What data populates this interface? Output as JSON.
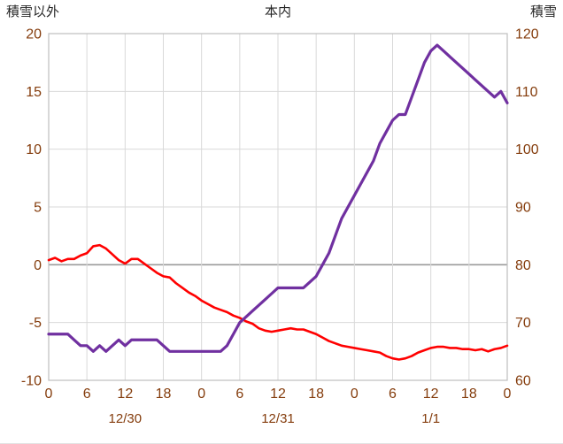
{
  "header": {
    "left_axis_title": "積雪以外",
    "chart_title": "本内",
    "right_axis_title": "積雪"
  },
  "chart_data": {
    "type": "line",
    "title": "本内",
    "left_axis": {
      "label": "積雪以外",
      "min": -10,
      "max": 20,
      "ticks": [
        20,
        15,
        10,
        5,
        0,
        -5,
        -10
      ]
    },
    "right_axis": {
      "label": "積雪",
      "min": 60,
      "max": 120,
      "ticks": [
        120,
        110,
        100,
        90,
        80,
        70,
        60
      ]
    },
    "x_axis": {
      "unit": "hour",
      "start_hour": 0,
      "end_hour": 72,
      "tick_hours": [
        0,
        6,
        12,
        18,
        24,
        30,
        36,
        42,
        48,
        54,
        60,
        66,
        72
      ],
      "tick_labels": [
        "0",
        "6",
        "12",
        "18",
        "0",
        "6",
        "12",
        "18",
        "0",
        "6",
        "12",
        "18",
        "0"
      ],
      "day_labels": [
        {
          "text": "12/30",
          "hour": 12
        },
        {
          "text": "12/31",
          "hour": 36
        },
        {
          "text": "1/1",
          "hour": 60
        }
      ]
    },
    "grid": {
      "line_color": "#D9D9D9",
      "zero_line_color": "#9B9B9B",
      "border_color": "#BFBFBF",
      "tick_text_color": "#843C0C",
      "title_text_color": "#262626",
      "background": "#FFFFFF"
    },
    "series": [
      {
        "id": "red-line",
        "axis": "left",
        "color": "#FF0000",
        "stroke_width": 2.6,
        "values": [
          0.4,
          0.6,
          0.3,
          0.5,
          0.5,
          0.8,
          1.0,
          1.6,
          1.7,
          1.4,
          0.9,
          0.4,
          0.1,
          0.5,
          0.5,
          0.1,
          -0.3,
          -0.7,
          -1.0,
          -1.1,
          -1.6,
          -2.0,
          -2.4,
          -2.7,
          -3.1,
          -3.4,
          -3.7,
          -3.9,
          -4.1,
          -4.4,
          -4.6,
          -4.9,
          -5.1,
          -5.5,
          -5.7,
          -5.8,
          -5.7,
          -5.6,
          -5.5,
          -5.6,
          -5.6,
          -5.8,
          -6.0,
          -6.3,
          -6.6,
          -6.8,
          -7.0,
          -7.1,
          -7.2,
          -7.3,
          -7.4,
          -7.5,
          -7.6,
          -7.9,
          -8.1,
          -8.2,
          -8.1,
          -7.9,
          -7.6,
          -7.4,
          -7.2,
          -7.1,
          -7.1,
          -7.2,
          -7.2,
          -7.3,
          -7.3,
          -7.4,
          -7.3,
          -7.5,
          -7.3,
          -7.2,
          -7.0
        ]
      },
      {
        "id": "purple-line",
        "axis": "right",
        "color": "#7030A0",
        "stroke_width": 3.2,
        "values": [
          68,
          68,
          68,
          68,
          67,
          66,
          66,
          65,
          66,
          65,
          66,
          67,
          66,
          67,
          67,
          67,
          67,
          67,
          66,
          65,
          65,
          65,
          65,
          65,
          65,
          65,
          65,
          65,
          66,
          68,
          70,
          71,
          72,
          73,
          74,
          75,
          76,
          76,
          76,
          76,
          76,
          77,
          78,
          80,
          82,
          85,
          88,
          90,
          92,
          94,
          96,
          98,
          101,
          103,
          105,
          106,
          106,
          109,
          112,
          115,
          117,
          118,
          117,
          116,
          115,
          114,
          113,
          112,
          111,
          110,
          109,
          110,
          108
        ]
      }
    ]
  }
}
